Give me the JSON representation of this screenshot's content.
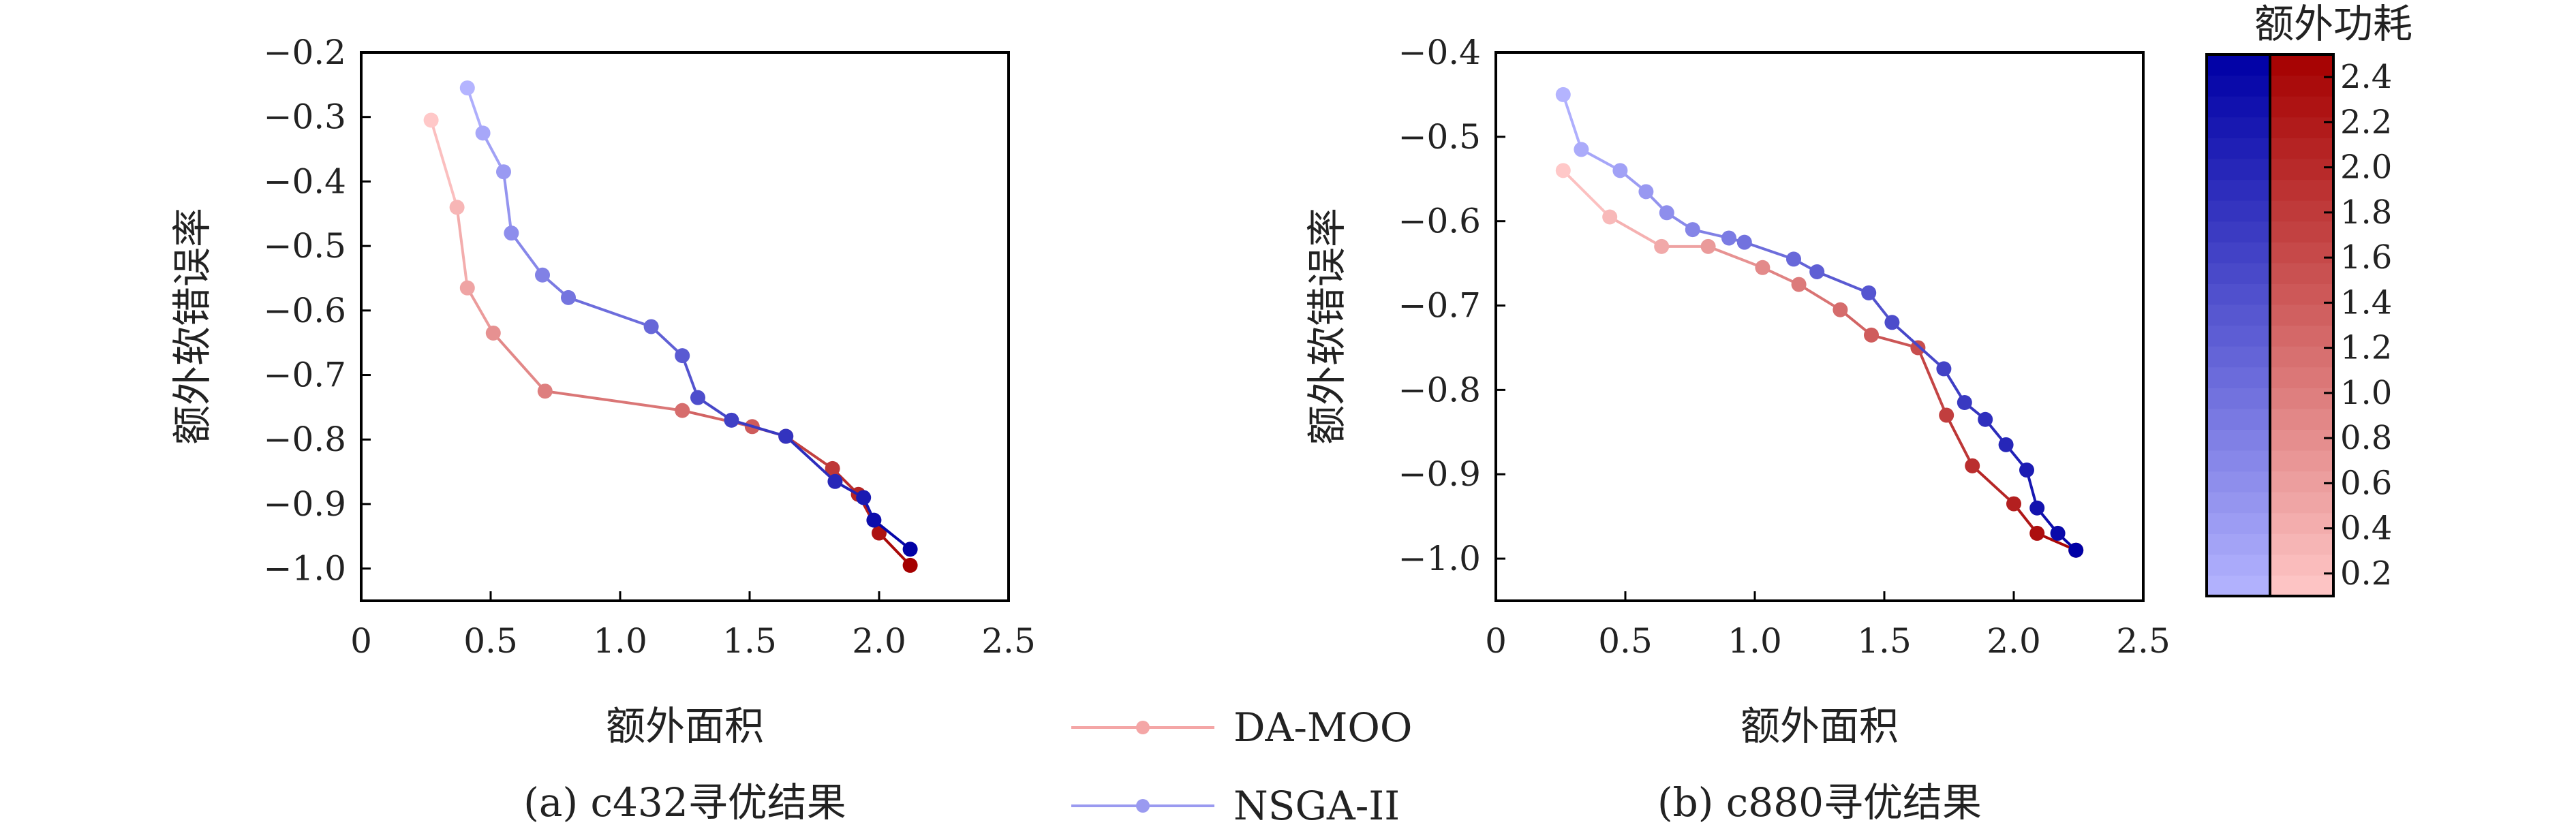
{
  "colors": {
    "da_moo_start": "#ffc8c8",
    "da_moo_end": "#a50000",
    "nsga_start": "#b4b4ff",
    "nsga_end": "#0000a5",
    "da_moo_legend": "#f4a6a6",
    "nsga_legend": "#9a9af0"
  },
  "legend": {
    "da_moo": "DA-MOO",
    "nsga": "NSGA-II"
  },
  "colorbar": {
    "title": "额外功耗",
    "ticks": [
      "2.4",
      "2.2",
      "2.0",
      "1.8",
      "1.6",
      "1.4",
      "1.2",
      "1.0",
      "0.8",
      "0.6",
      "0.4",
      "0.2"
    ],
    "range": [
      0.1,
      2.5
    ]
  },
  "chart_data": [
    {
      "type": "line",
      "caption": "(a) c432寻优结果",
      "xlabel": "额外面积",
      "ylabel": "额外软错误率",
      "xlim": [
        0,
        2.5
      ],
      "ylim": [
        -1.05,
        -0.2
      ],
      "xticks": [
        "0",
        "0.5",
        "1.0",
        "1.5",
        "2.0",
        "2.5"
      ],
      "yticks": [
        "−0.2",
        "−0.3",
        "−0.4",
        "−0.5",
        "−0.6",
        "−0.7",
        "−0.8",
        "−0.9",
        "−1.0"
      ],
      "series": [
        {
          "name": "DA-MOO",
          "x": [
            0.27,
            0.37,
            0.41,
            0.51,
            0.71,
            1.24,
            1.51,
            1.64,
            1.82,
            1.92,
            2.0,
            2.12
          ],
          "y": [
            -0.305,
            -0.44,
            -0.565,
            -0.635,
            -0.725,
            -0.755,
            -0.78,
            -0.795,
            -0.845,
            -0.885,
            -0.945,
            -0.995
          ]
        },
        {
          "name": "NSGA-II",
          "x": [
            0.41,
            0.47,
            0.55,
            0.58,
            0.7,
            0.8,
            1.12,
            1.24,
            1.3,
            1.43,
            1.64,
            1.83,
            1.94,
            1.98,
            2.12
          ],
          "y": [
            -0.255,
            -0.325,
            -0.385,
            -0.48,
            -0.545,
            -0.58,
            -0.625,
            -0.67,
            -0.735,
            -0.77,
            -0.795,
            -0.865,
            -0.89,
            -0.925,
            -0.97
          ]
        }
      ]
    },
    {
      "type": "line",
      "caption": "(b) c880寻优结果",
      "xlabel": "额外面积",
      "ylabel": "额外软错误率",
      "xlim": [
        0,
        2.5
      ],
      "ylim": [
        -1.05,
        -0.4
      ],
      "xticks": [
        "0",
        "0.5",
        "1.0",
        "1.5",
        "2.0",
        "2.5"
      ],
      "yticks": [
        "−0.4",
        "−0.5",
        "−0.6",
        "−0.7",
        "−0.8",
        "−0.9",
        "−1.0"
      ],
      "series": [
        {
          "name": "DA-MOO",
          "x": [
            0.26,
            0.44,
            0.64,
            0.82,
            1.03,
            1.17,
            1.33,
            1.45,
            1.63,
            1.74,
            1.84,
            2.0,
            2.09,
            2.24
          ],
          "y": [
            -0.54,
            -0.595,
            -0.63,
            -0.63,
            -0.655,
            -0.675,
            -0.705,
            -0.735,
            -0.75,
            -0.83,
            -0.89,
            -0.935,
            -0.97,
            -0.99
          ]
        },
        {
          "name": "NSGA-II",
          "x": [
            0.26,
            0.33,
            0.48,
            0.58,
            0.66,
            0.76,
            0.9,
            0.96,
            1.15,
            1.24,
            1.44,
            1.53,
            1.73,
            1.81,
            1.89,
            1.97,
            2.05,
            2.09,
            2.17,
            2.24
          ],
          "y": [
            -0.45,
            -0.515,
            -0.54,
            -0.565,
            -0.59,
            -0.61,
            -0.62,
            -0.625,
            -0.645,
            -0.66,
            -0.685,
            -0.72,
            -0.775,
            -0.815,
            -0.835,
            -0.865,
            -0.895,
            -0.94,
            -0.97,
            -0.99
          ]
        }
      ]
    }
  ]
}
